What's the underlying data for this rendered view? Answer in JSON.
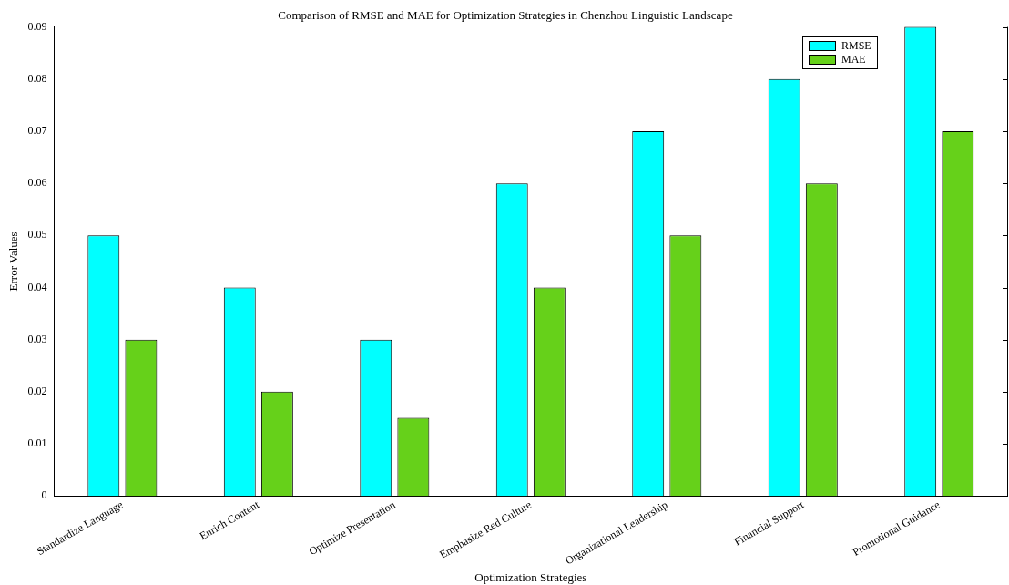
{
  "chart_data": {
    "type": "bar",
    "title": "Comparison of RMSE and MAE for Optimization Strategies in Chenzhou Linguistic Landscape",
    "xlabel": "Optimization Strategies",
    "ylabel": "Error Values",
    "categories": [
      "Standardize Language",
      "Enrich Content",
      "Optimize Presentation",
      "Emphasize Red Culture",
      "Organizational Leadership",
      "Financial Support",
      "Promotional Guidance"
    ],
    "series": [
      {
        "name": "RMSE",
        "color": "#00ffff",
        "values": [
          0.05,
          0.04,
          0.03,
          0.06,
          0.07,
          0.08,
          0.09
        ]
      },
      {
        "name": "MAE",
        "color": "#66d11a",
        "values": [
          0.03,
          0.02,
          0.015,
          0.04,
          0.05,
          0.06,
          0.07
        ]
      }
    ],
    "ylim": [
      0,
      0.09
    ],
    "yticks": [
      0,
      0.01,
      0.02,
      0.03,
      0.04,
      0.05,
      0.06,
      0.07,
      0.08,
      0.09
    ],
    "grid": false,
    "legend": "top right"
  }
}
